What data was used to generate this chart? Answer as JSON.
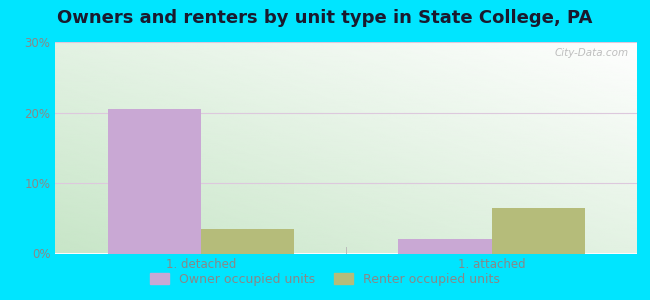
{
  "title": "Owners and renters by unit type in State College, PA",
  "categories": [
    "1. detached",
    "1. attached"
  ],
  "owner_values": [
    20.5,
    2.0
  ],
  "renter_values": [
    3.5,
    6.5
  ],
  "owner_color": "#c9a8d4",
  "renter_color": "#b5bc7a",
  "ylim": [
    0,
    30
  ],
  "yticks": [
    0,
    10,
    20,
    30
  ],
  "ytick_labels": [
    "0%",
    "10%",
    "20%",
    "30%"
  ],
  "bar_width": 0.32,
  "bg_color_topleft": "#d6efd6",
  "bg_color_topright": "#f0f8f0",
  "bg_color_bottomleft": "#c8e8c8",
  "bg_color_bottomright": "#ffffff",
  "outer_color": "#00e5ff",
  "legend_owner": "Owner occupied units",
  "legend_renter": "Renter occupied units",
  "watermark": "City-Data.com",
  "title_fontsize": 13,
  "tick_fontsize": 8.5,
  "legend_fontsize": 9,
  "grid_color": "#e8d8e8",
  "tick_color": "#888888"
}
